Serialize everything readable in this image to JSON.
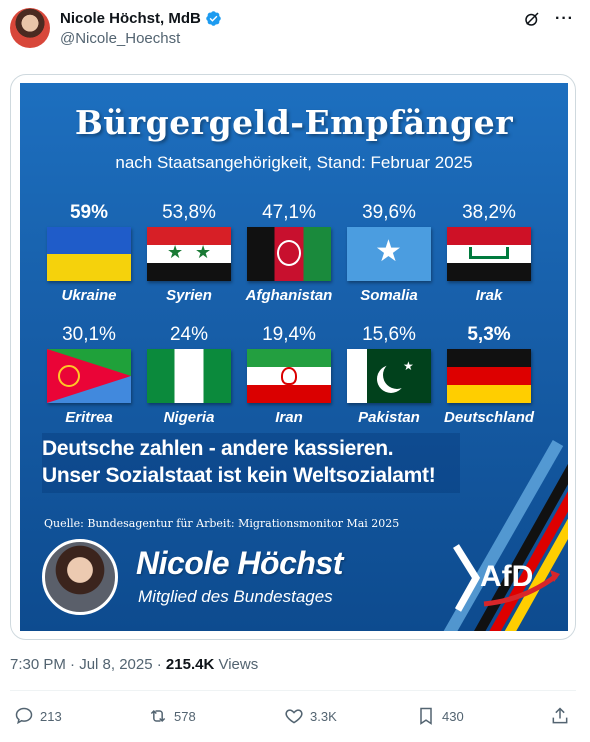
{
  "author": {
    "name": "Nicole Höchst, MdB",
    "handle": "@Nicole_Hoechst"
  },
  "graphic": {
    "title": "Bürgergeld-Empfänger",
    "subtitle": "nach Staatsangehörigkeit, Stand: Februar 2025",
    "countries": [
      {
        "pct": "59%",
        "label": "Ukraine"
      },
      {
        "pct": "53,8%",
        "label": "Syrien"
      },
      {
        "pct": "47,1%",
        "label": "Afghanistan"
      },
      {
        "pct": "39,6%",
        "label": "Somalia"
      },
      {
        "pct": "38,2%",
        "label": "Irak"
      },
      {
        "pct": "30,1%",
        "label": "Eritrea"
      },
      {
        "pct": "24%",
        "label": "Nigeria"
      },
      {
        "pct": "19,4%",
        "label": "Iran"
      },
      {
        "pct": "15,6%",
        "label": "Pakistan"
      },
      {
        "pct": "5,3%",
        "label": "Deutschland"
      }
    ],
    "slogan_line1": "Deutsche zahlen - andere kassieren.",
    "slogan_line2": "Unser Sozialstaat ist kein Weltsozialamt!",
    "source": "Quelle: Bundesagentur für Arbeit: Migrationsmonitor Mai 2025",
    "person_name": "Nicole Höchst",
    "person_role": "Mitglied des Bundestages",
    "party_logo": "AfD"
  },
  "meta": {
    "time": "7:30 PM · Jul 8, 2025 · ",
    "views_count": "215.4K",
    "views_label": " Views"
  },
  "actions": {
    "replies": "213",
    "reposts": "578",
    "likes": "3.3K",
    "bookmarks": "430"
  },
  "colors": {
    "accent_blue": "#1d9bf0",
    "graphic_blue": "#175ea8"
  }
}
